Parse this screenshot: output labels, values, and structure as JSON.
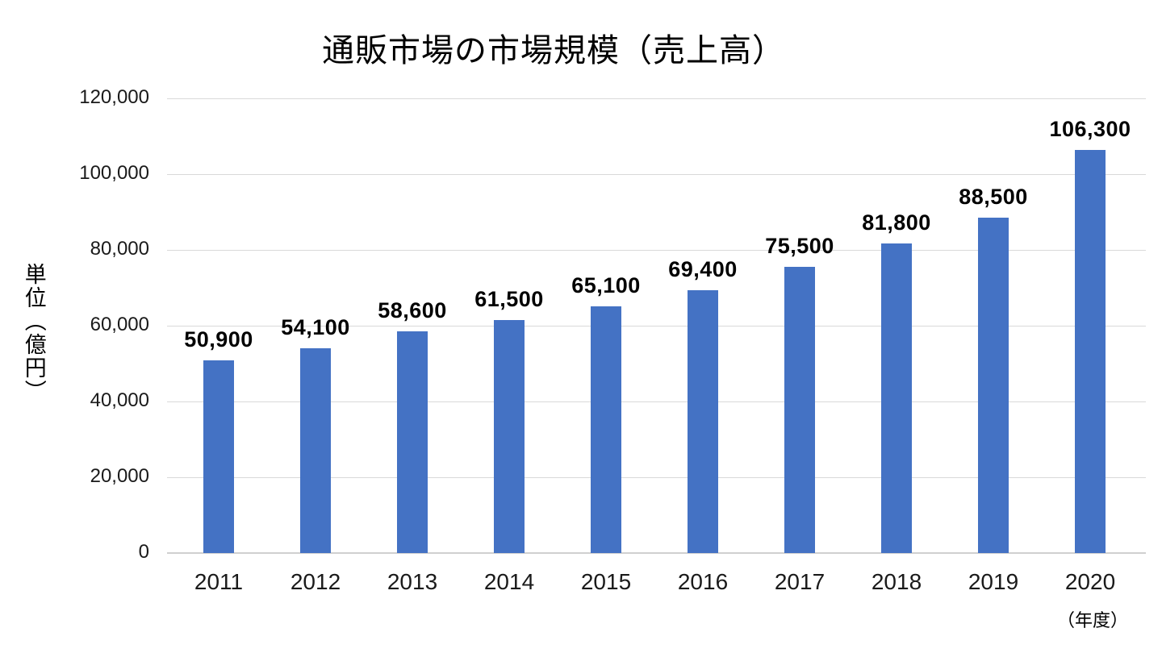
{
  "page": {
    "background": "#ffffff"
  },
  "chart_data": {
    "type": "bar",
    "title": "通販市場の市場規模（売上高）",
    "ylabel": "単位（億円）",
    "xlabel": "（年度）",
    "categories": [
      "2011",
      "2012",
      "2013",
      "2014",
      "2015",
      "2016",
      "2017",
      "2018",
      "2019",
      "2020"
    ],
    "values": [
      50900,
      54100,
      58600,
      61500,
      65100,
      69400,
      75500,
      81800,
      88500,
      106300
    ],
    "data_labels": [
      "50,900",
      "54,100",
      "58,600",
      "61,500",
      "65,100",
      "69,400",
      "75,500",
      "81,800",
      "88,500",
      "106,300"
    ],
    "ylim": [
      0,
      120000
    ],
    "ytick_interval": 20000,
    "ytick_labels": [
      "0",
      "20,000",
      "40,000",
      "60,000",
      "80,000",
      "100,000",
      "120,000"
    ],
    "grid": true,
    "legend": "none",
    "bar_color": "#4472C4",
    "gridline_color": "#D9D9D9",
    "text_color": "#000000"
  }
}
